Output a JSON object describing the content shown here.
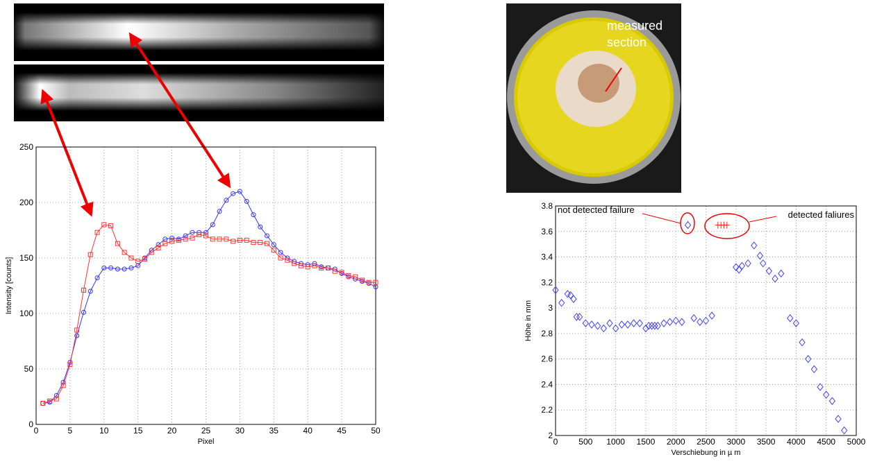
{
  "photo_label": [
    "measured",
    "section"
  ],
  "chart_data": [
    {
      "type": "line",
      "xlabel": "Pixel",
      "ylabel": "Intensity [counts]",
      "xlim": [
        0,
        50
      ],
      "ylim": [
        0,
        250
      ],
      "xticks": [
        0,
        5,
        10,
        15,
        20,
        25,
        30,
        35,
        40,
        45,
        50
      ],
      "yticks": [
        0,
        50,
        100,
        150,
        200,
        250
      ],
      "grid": true,
      "x": [
        1,
        2,
        3,
        4,
        5,
        6,
        7,
        8,
        9,
        10,
        11,
        12,
        13,
        14,
        15,
        16,
        17,
        18,
        19,
        20,
        21,
        22,
        23,
        24,
        25,
        26,
        27,
        28,
        29,
        30,
        31,
        32,
        33,
        34,
        35,
        36,
        37,
        38,
        39,
        40,
        41,
        42,
        43,
        44,
        45,
        46,
        47,
        48,
        49,
        50
      ],
      "series": [
        {
          "color": "#3333ff",
          "marker": "o",
          "values": [
            19,
            20,
            26,
            38,
            56,
            80,
            101,
            120,
            132,
            141,
            141,
            140,
            140,
            141,
            143,
            150,
            157,
            162,
            167,
            168,
            167,
            170,
            173,
            173,
            173,
            180,
            192,
            202,
            208,
            210,
            201,
            189,
            178,
            170,
            162,
            155,
            150,
            147,
            145,
            144,
            145,
            142,
            141,
            140,
            136,
            133,
            131,
            129,
            127,
            124
          ]
        },
        {
          "color": "#ff3333",
          "marker": "s",
          "values": [
            19,
            21,
            23,
            35,
            54,
            85,
            121,
            153,
            173,
            180,
            179,
            163,
            155,
            150,
            147,
            149,
            155,
            159,
            163,
            165,
            166,
            167,
            168,
            171,
            170,
            167,
            167,
            167,
            165,
            166,
            166,
            164,
            164,
            163,
            157,
            150,
            148,
            145,
            143,
            142,
            143,
            141,
            141,
            138,
            137,
            134,
            133,
            130,
            128,
            128
          ]
        }
      ]
    },
    {
      "type": "scatter",
      "xlabel": "Verschiebung in µ m",
      "ylabel": "Höhe in mm",
      "xlim": [
        0,
        5000
      ],
      "ylim": [
        2,
        3.8
      ],
      "xticks": [
        0,
        500,
        1000,
        1500,
        2000,
        2500,
        3000,
        3500,
        4000,
        4500,
        5000
      ],
      "yticks": [
        2,
        2.2,
        2.4,
        2.6,
        2.8,
        3,
        3.2,
        3.4,
        3.6,
        3.8
      ],
      "grid": true,
      "annotations": [
        "not detected failure",
        "detected faliures"
      ],
      "series": [
        {
          "color": "#4040ff",
          "marker": "D",
          "x": [
            0,
            100,
            200,
            250,
            300,
            350,
            400,
            500,
            600,
            700,
            800,
            900,
            1000,
            1100,
            1200,
            1300,
            1400,
            1500,
            1550,
            1600,
            1650,
            1700,
            1800,
            1900,
            2000,
            2100,
            2200,
            2300,
            2400,
            2500,
            2600,
            3000,
            3050,
            3100,
            3200,
            3300,
            3400,
            3450,
            3550,
            3650,
            3750,
            3900,
            4000,
            4100,
            4200,
            4300,
            4400,
            4500,
            4600,
            4700,
            4800
          ],
          "values": [
            3.14,
            3.04,
            3.11,
            3.1,
            3.07,
            2.93,
            2.93,
            2.88,
            2.87,
            2.86,
            2.84,
            2.88,
            2.84,
            2.87,
            2.87,
            2.88,
            2.88,
            2.84,
            2.86,
            2.86,
            2.86,
            2.86,
            2.88,
            2.89,
            2.9,
            2.89,
            3.65,
            2.92,
            2.89,
            2.9,
            2.94,
            3.32,
            3.3,
            3.33,
            3.35,
            3.49,
            3.41,
            3.35,
            3.29,
            3.23,
            3.27,
            2.92,
            2.88,
            2.73,
            2.6,
            2.52,
            2.38,
            2.32,
            2.27,
            2.13,
            2.04
          ]
        },
        {
          "color": "#ff2020",
          "marker": "+",
          "x": [
            2700,
            2750,
            2800,
            2850
          ],
          "values": [
            3.65,
            3.65,
            3.65,
            3.65
          ]
        }
      ]
    }
  ]
}
